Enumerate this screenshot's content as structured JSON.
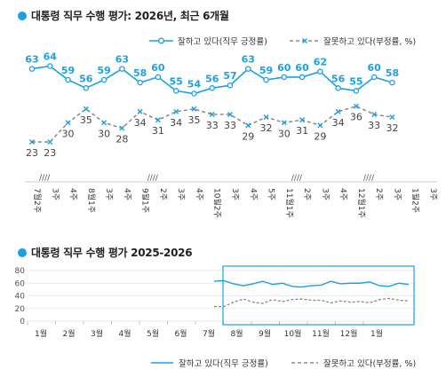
{
  "chart_data": [
    {
      "type": "line",
      "title": "대통령 직무 수행 평가: 2026년, 최근 6개월",
      "categories": [
        "7월2주",
        "3주",
        "4주",
        "8월1주",
        "3주",
        "4주",
        "9월1주",
        "2주",
        "3주",
        "4주",
        "10월2주",
        "3주",
        "4주",
        "5주",
        "11월1주",
        "2주",
        "3주",
        "4주",
        "12월1주",
        "2주",
        "3주",
        "1월2주",
        "3주"
      ],
      "series": [
        {
          "name": "잘하고 있다(직무 긍정률)",
          "values": [
            63,
            64,
            59,
            56,
            59,
            63,
            58,
            60,
            55,
            54,
            56,
            57,
            63,
            59,
            60,
            60,
            62,
            56,
            55,
            60,
            58,
            null,
            null
          ]
        },
        {
          "name": "잘못하고 있다(부정률, %)",
          "values": [
            23,
            23,
            30,
            35,
            30,
            28,
            34,
            31,
            34,
            35,
            33,
            33,
            29,
            32,
            30,
            31,
            29,
            34,
            36,
            33,
            32,
            null,
            null
          ]
        }
      ],
      "break_markers": [
        "////",
        "////",
        "////",
        "////"
      ]
    },
    {
      "type": "line",
      "title": "대통령 직무 수행 평가 2025-2026",
      "x_labels": [
        "1월",
        "2월",
        "3월",
        "4월",
        "5월",
        "6월",
        "7월",
        "8월",
        "9월",
        "10월",
        "11월",
        "12월",
        "1월"
      ],
      "ylim": [
        0,
        80
      ],
      "yticks": [
        0,
        20,
        40,
        60,
        80
      ],
      "series": [
        {
          "name": "잘하고 있다(직무 긍정률)",
          "values": [
            63,
            64,
            59,
            56,
            59,
            63,
            58,
            60,
            55,
            54,
            56,
            57,
            63,
            59,
            60,
            60,
            62,
            56,
            55,
            60,
            58
          ]
        },
        {
          "name": "잘못하고 있다(부정률, %)",
          "values": [
            23,
            23,
            30,
            35,
            30,
            28,
            34,
            31,
            34,
            35,
            33,
            33,
            29,
            32,
            30,
            31,
            29,
            34,
            36,
            33,
            32
          ]
        }
      ],
      "grid": true
    }
  ],
  "colors": {
    "approve": "#1ba1e2",
    "disapprove": "#888888",
    "highlight_box": "#1ba1e2"
  }
}
